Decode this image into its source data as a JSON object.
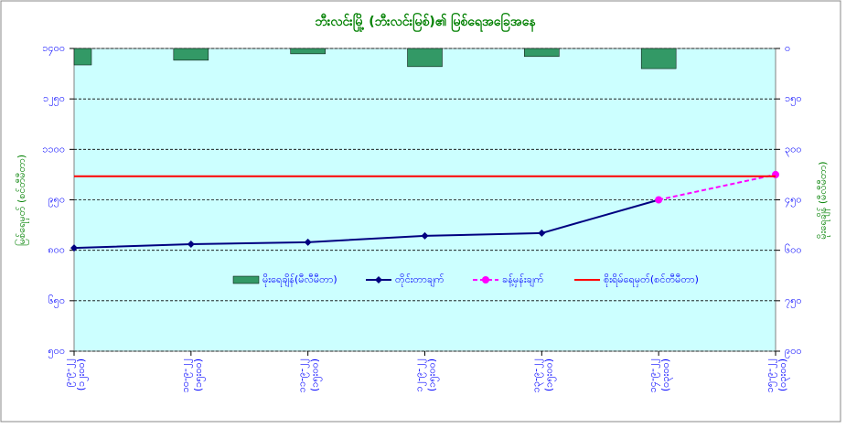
{
  "chart_data": {
    "type": "bar-line",
    "title": "ဘီးလင်းမြို့ (ဘီးလင်းမြစ်)၏ မြစ်ရေအခြေအနေ",
    "y_label": "မြစ်ရေမှတ် (စင်တီမီတာ)",
    "y2_label": "မိုးရေချိန် (မီလီမီတာ)",
    "categories": [
      [
        "၉-၉-၂၂",
        "(၁၂း၀၀)"
      ],
      [
        "၁၀-၉-၂၂",
        "(၁၅း၀၀)"
      ],
      [
        "၁၁-၉-၂၂",
        "(၁၅း၀၀)"
      ],
      [
        "၁၂-၉-၂၂",
        "(၁၅း၀၀)"
      ],
      [
        "၁၃-၉-၂၂",
        "(၁၅း၀၀)"
      ],
      [
        "၁၄-၉-၂၂",
        "(၀၃း၀၀)"
      ],
      [
        "၁၅-၉-၂၂",
        "(၀၃း၀၀)"
      ]
    ],
    "ylim": [
      500,
      1400
    ],
    "yticks": [
      {
        "value": 500,
        "label": "၅၀၀"
      },
      {
        "value": 650,
        "label": "၆၅၀"
      },
      {
        "value": 800,
        "label": "၈၀၀"
      },
      {
        "value": 950,
        "label": "၉၅၀"
      },
      {
        "value": 1100,
        "label": "၁၁၀၀"
      },
      {
        "value": 1250,
        "label": "၁၂၅၀"
      },
      {
        "value": 1400,
        "label": "၁၄၀၀"
      }
    ],
    "y2lim": [
      900,
      0
    ],
    "y2ticks": [
      {
        "value": 900,
        "label": "၉၀၀"
      },
      {
        "value": 750,
        "label": "၇၅၀"
      },
      {
        "value": 600,
        "label": "၆၀၀"
      },
      {
        "value": 450,
        "label": "၄၅၀"
      },
      {
        "value": 300,
        "label": "၃၀၀"
      },
      {
        "value": 150,
        "label": "၁၅၀"
      },
      {
        "value": 0,
        "label": "၀"
      }
    ],
    "grid": true,
    "series": [
      {
        "name": "မိုးရေချိန်(မီလီမီတာ)",
        "kind": "bar",
        "axis": "y2",
        "color": "#339966",
        "values": [
          49,
          35,
          16,
          54,
          24,
          60,
          null
        ]
      },
      {
        "name": "တိုင်းတာချက်",
        "kind": "line",
        "color": "#000080",
        "values": [
          807,
          818,
          824,
          843,
          851,
          950,
          null
        ]
      },
      {
        "name": "ခန့်မှန်းချက်",
        "kind": "dashed",
        "color": "#ff00ff",
        "values": [
          null,
          null,
          null,
          null,
          null,
          950,
          1025
        ]
      },
      {
        "name": "စိုးရိမ်ရေမှတ်(စင်တီမီတာ)",
        "kind": "level",
        "color": "#ff0000",
        "values": [
          1020,
          1020,
          1020,
          1020,
          1020,
          1020,
          1020
        ]
      }
    ]
  }
}
